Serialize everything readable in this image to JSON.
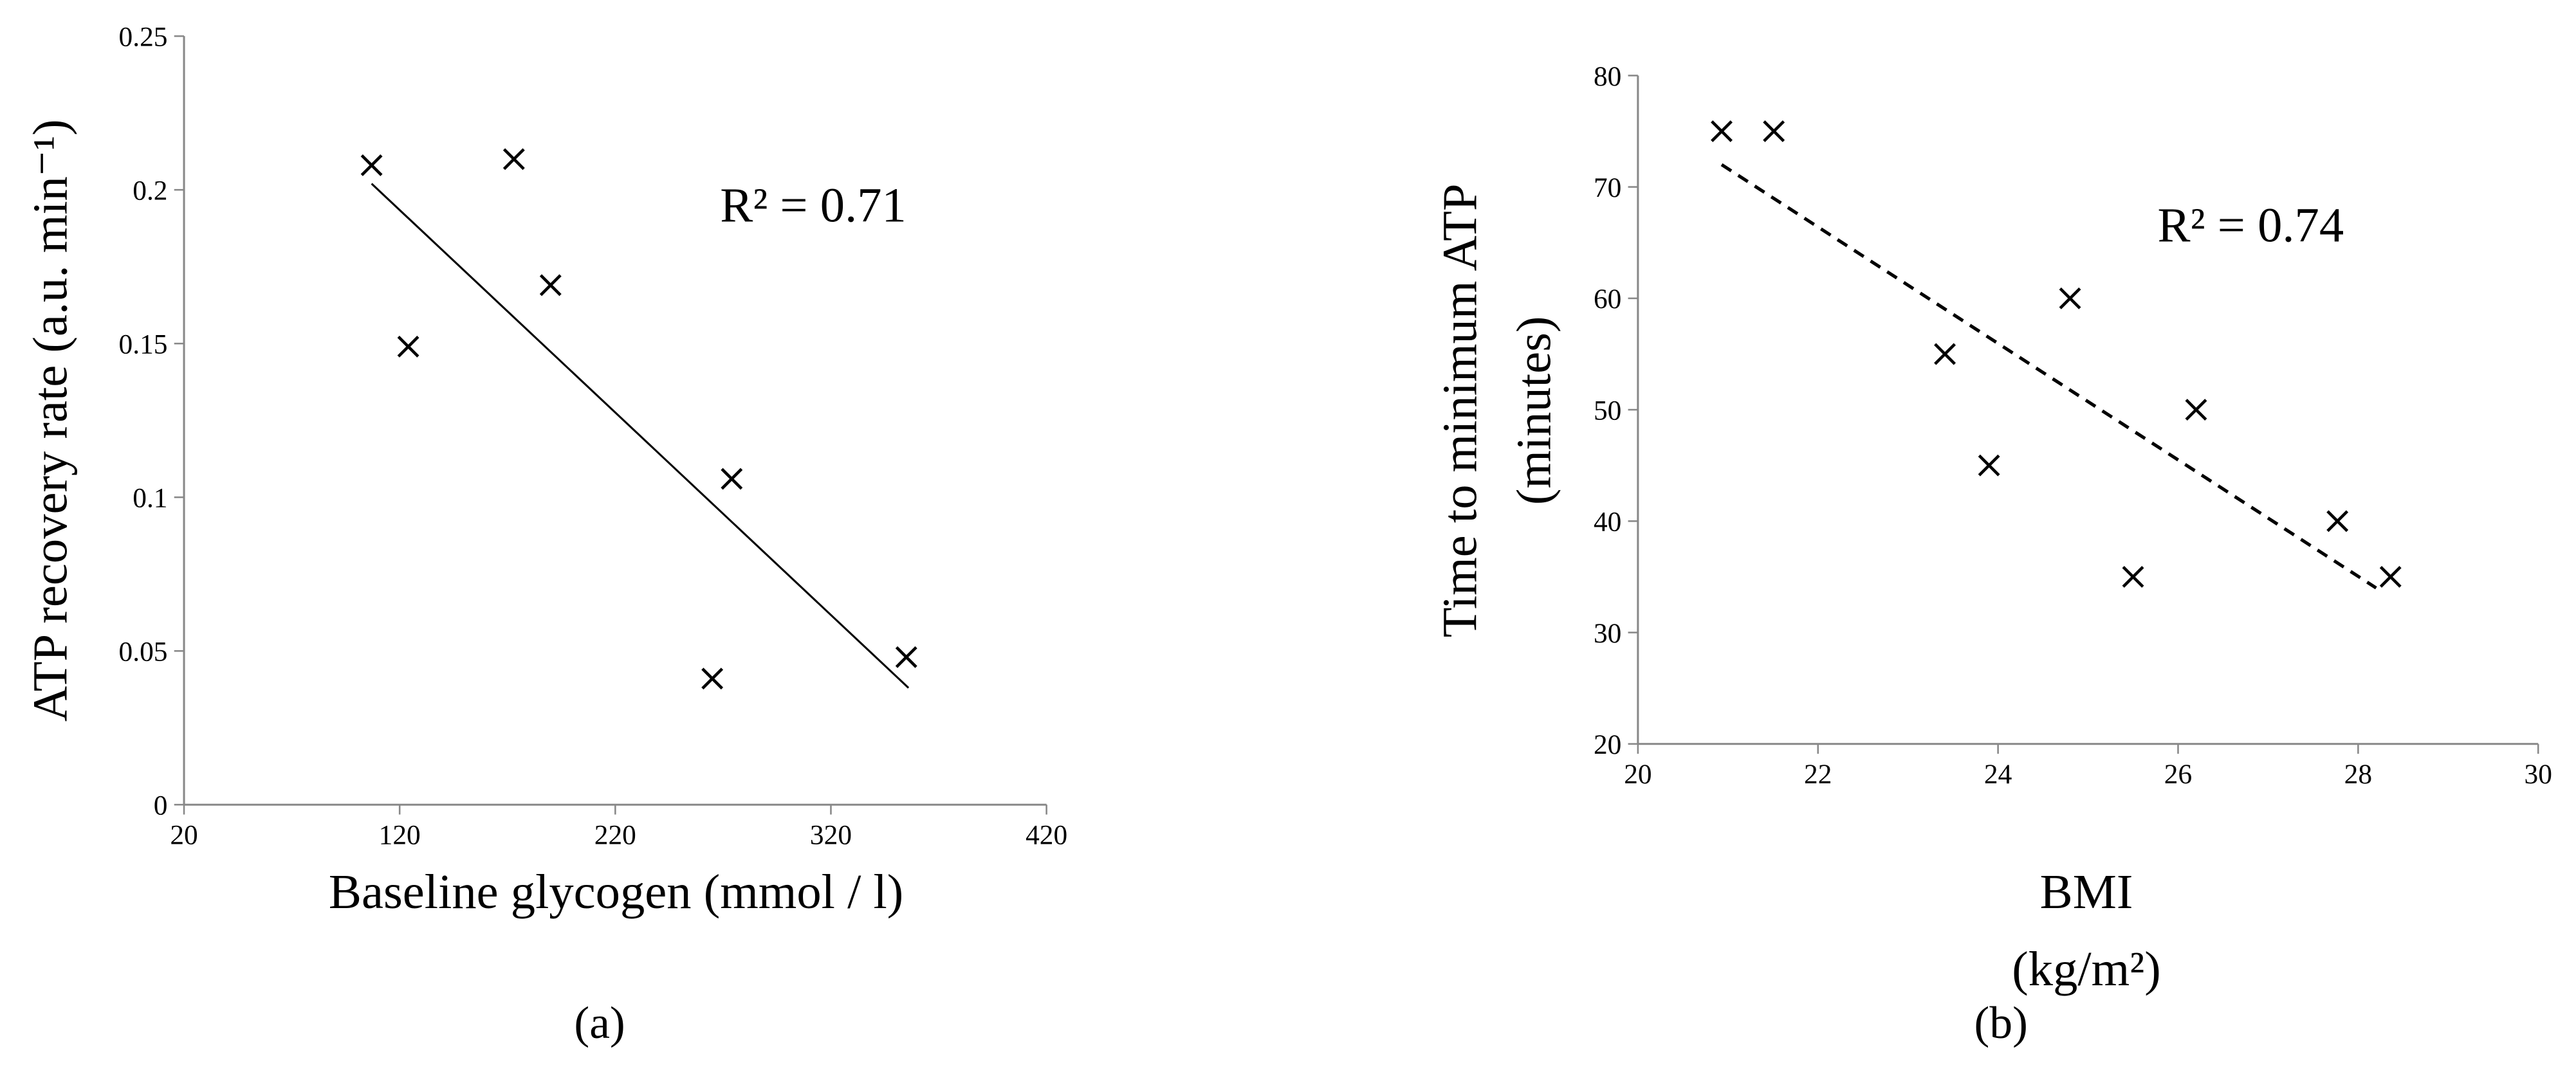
{
  "chart_data": [
    {
      "type": "scatter",
      "caption": "(a)",
      "xlabel": "Baseline glycogen (mmol / l)",
      "ylabel": "ATP recovery rate (a.u. min⁻¹)",
      "annotation": "R² = 0.71",
      "xlim": [
        20,
        420
      ],
      "xticks": [
        20,
        120,
        220,
        320,
        420
      ],
      "ylim": [
        0,
        0.25
      ],
      "yticks": [
        0,
        0.05,
        0.1,
        0.15,
        0.2,
        0.25
      ],
      "series": [
        {
          "color": "#000000",
          "x": [
            107,
            124,
            173,
            190,
            274,
            265,
            355
          ],
          "values": [
            0.208,
            0.149,
            0.21,
            0.169,
            0.106,
            0.041,
            0.048
          ]
        }
      ],
      "trendline": {
        "style": "solid",
        "color": "#000000",
        "x": [
          107,
          356
        ],
        "values": [
          0.202,
          0.038
        ]
      }
    },
    {
      "type": "scatter",
      "caption": "(b)",
      "xlabel": [
        "BMI",
        "(kg/m²)"
      ],
      "ylabel": [
        "Time to minimum ATP",
        "(minutes)"
      ],
      "annotation": "R² = 0.74",
      "xlim": [
        20,
        30
      ],
      "xticks": [
        20,
        22,
        24,
        26,
        28,
        30
      ],
      "ylim": [
        20,
        80
      ],
      "yticks": [
        20,
        30,
        40,
        50,
        60,
        70,
        80
      ],
      "series": [
        {
          "color": "#000000",
          "x": [
            20.93,
            21.51,
            23.41,
            23.9,
            24.8,
            25.5,
            26.2,
            27.77,
            28.36
          ],
          "values": [
            75,
            75,
            55,
            45,
            60,
            35,
            50,
            40,
            35
          ]
        }
      ],
      "trendline": {
        "style": "dashed",
        "color": "#000000",
        "x": [
          20.93,
          28.2
        ],
        "values": [
          72,
          34
        ]
      }
    }
  ]
}
